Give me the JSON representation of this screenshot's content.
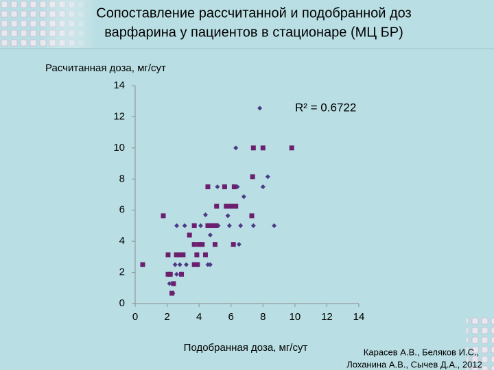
{
  "chart_data": {
    "type": "scatter",
    "title": "Сопоставление рассчитанной и подобранной доз варфарина у пациентов в стационаре (МЦ БР)",
    "title_lines": [
      "Сопоставление рассчитанной и подобранной доз",
      "варфарина у пациентов в стационаре (МЦ БР)"
    ],
    "y_label": "Расчитанная доза, мг/сут",
    "x_label": "Подобранная доза, мг/сут",
    "annotation": "R² = 0.6722",
    "credits": [
      "Карасев А.В., Беляков И.С.,",
      "Лоханина А.В., Сычев Д.А., 2012"
    ],
    "xlim": [
      0,
      14
    ],
    "ylim": [
      0,
      14
    ],
    "xticks": [
      0,
      2,
      4,
      6,
      8,
      10,
      12,
      14
    ],
    "yticks": [
      0,
      2,
      4,
      6,
      8,
      10,
      12,
      14
    ],
    "series": [
      {
        "color": "#4b3a86",
        "marker": "diamond",
        "x": [
          7.8,
          6.3,
          8.3,
          8.0,
          5.15,
          6.4,
          6.8,
          5.07,
          4.4,
          5.8,
          2.6,
          3.1,
          4.1,
          5.2,
          5.9,
          6.6,
          7.4,
          8.7,
          4.7,
          4.1,
          6.5,
          2.5,
          2.8,
          3.2,
          4.55,
          4.7,
          2.6,
          2.15,
          2.36,
          2.2
        ],
        "values": [
          12.55,
          10.0,
          8.15,
          7.5,
          7.5,
          7.5,
          6.87,
          6.25,
          5.7,
          5.64,
          5.0,
          5.0,
          5.0,
          5.0,
          5.0,
          5.0,
          5.0,
          5.0,
          4.4,
          3.8,
          3.8,
          2.5,
          2.5,
          2.5,
          2.5,
          2.5,
          1.88,
          1.28,
          0.66,
          1.88
        ]
      },
      {
        "color": "#6b1f6e",
        "marker": "square",
        "x": [
          0.47,
          1.76,
          2.06,
          2.06,
          2.2,
          2.3,
          2.4,
          2.58,
          2.8,
          2.9,
          3.0,
          3.4,
          3.7,
          3.7,
          3.7,
          3.86,
          3.9,
          4.0,
          4.2,
          4.4,
          4.55,
          4.55,
          4.7,
          4.85,
          5.0,
          5.05,
          5.1,
          5.6,
          5.7,
          5.9,
          6.1,
          6.2,
          6.3,
          6.15,
          7.35,
          7.3,
          7.4,
          8.0,
          9.8
        ],
        "values": [
          2.5,
          5.64,
          3.13,
          1.88,
          1.88,
          0.66,
          1.28,
          3.13,
          3.13,
          1.88,
          3.13,
          4.4,
          5.0,
          3.8,
          2.5,
          3.13,
          2.5,
          3.8,
          3.8,
          3.13,
          7.5,
          5.0,
          5.0,
          5.0,
          3.8,
          5.0,
          6.25,
          7.5,
          6.25,
          6.25,
          6.25,
          7.5,
          6.25,
          3.8,
          8.15,
          5.64,
          10.0,
          10.0,
          10.0
        ]
      }
    ]
  }
}
